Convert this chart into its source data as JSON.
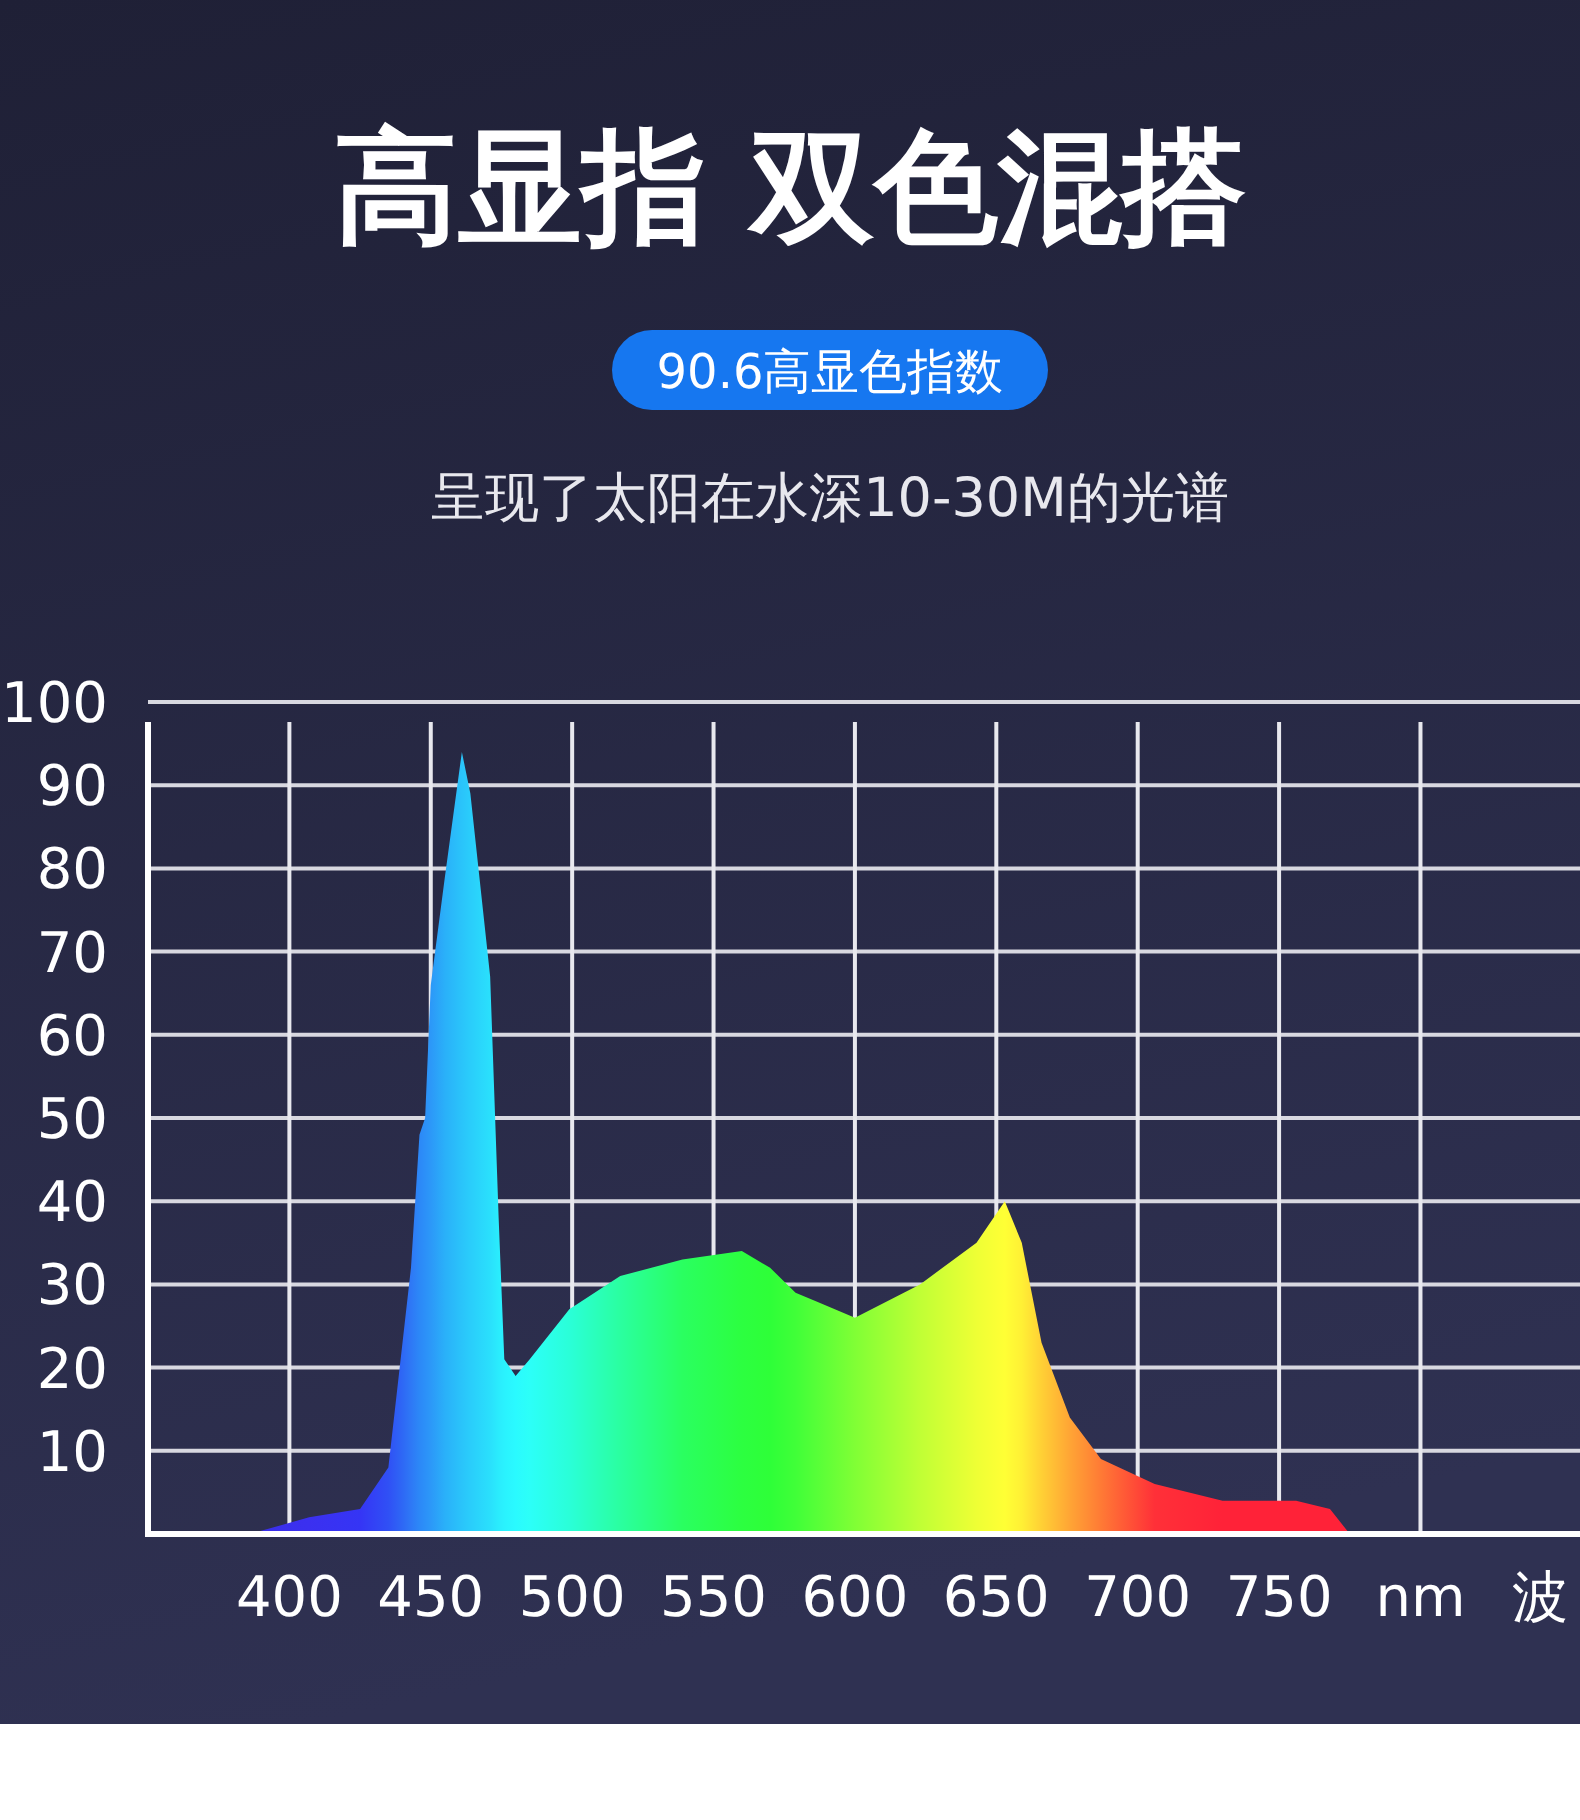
{
  "chart_data": {
    "type": "area",
    "title": "高显指  双色混搭",
    "subtitle": "90.6高显色指数",
    "annotations": [
      "呈现了太阳在水深10-30M的光谱"
    ],
    "xlabel": "波",
    "x": [
      386,
      407,
      425,
      435,
      440,
      443,
      446,
      448,
      450,
      455,
      461,
      464,
      471,
      474,
      476,
      480,
      485,
      499,
      517,
      539,
      560,
      570,
      579,
      586,
      600,
      623,
      643,
      653,
      659,
      666,
      676,
      687,
      706,
      730,
      756,
      768,
      775
    ],
    "series": [
      {
        "values": [
          0,
          2,
          3,
          8,
          23,
          32,
          48,
          50,
          66,
          79,
          94,
          89,
          67,
          38,
          21,
          19,
          21,
          27,
          31,
          33,
          34,
          32,
          29,
          28,
          26,
          30,
          35,
          40,
          35,
          23,
          14,
          9,
          6,
          4,
          4,
          3,
          0
        ],
        "colors": [
          "#3a2ee8",
          "#3b30f0",
          "#3535f5",
          "#3050f5",
          "#2e68f5",
          "#2e78f6",
          "#2c88f7",
          "#2c90f8",
          "#2c98f8",
          "#2ab0f9",
          "#2ac4fa",
          "#2acdfb",
          "#2ae0fc",
          "#2aecfd",
          "#2af2fe",
          "#2afaff",
          "#2cfff8",
          "#2affd8",
          "#2affa0",
          "#2aff60",
          "#2cff40",
          "#2eff38",
          "#40ff38",
          "#55ff38",
          "#80ff35",
          "#c0ff35",
          "#eeff35",
          "#ffff35",
          "#fff035",
          "#ffd035",
          "#ffa535",
          "#ff7a35",
          "#ff3038",
          "#ff2238",
          "#ff2238",
          "#ff2238",
          "#ff2238"
        ]
      }
    ],
    "xlim": [
      350,
      855
    ],
    "xticks": [
      400,
      450,
      500,
      550,
      600,
      650,
      700,
      750,
      {
        "value": 800,
        "label": "nm"
      }
    ],
    "ylim": [
      0,
      100
    ],
    "yticks": [
      10,
      20,
      30,
      40,
      50,
      60,
      70,
      80,
      90,
      100
    ],
    "grid": true
  }
}
